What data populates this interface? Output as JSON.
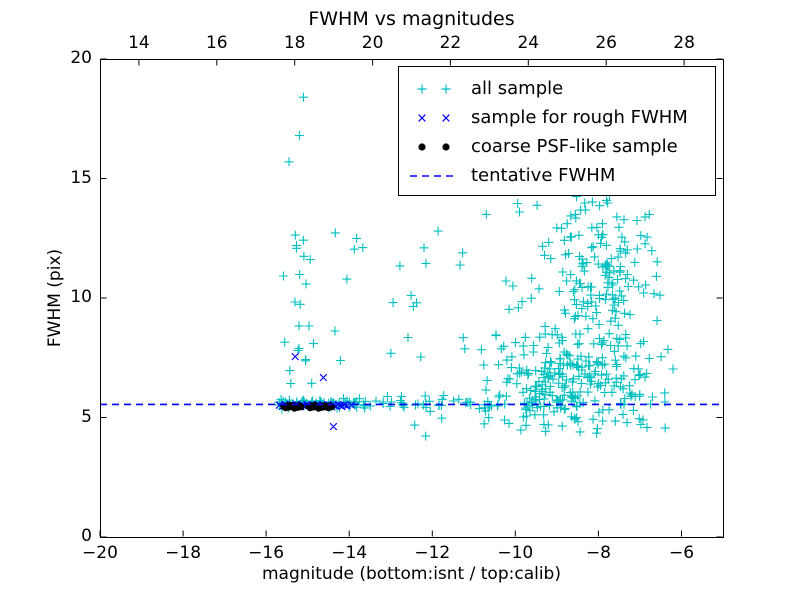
{
  "chart_data": {
    "type": "scatter",
    "title": "FWHM vs magnitudes",
    "xlabel": "magnitude (bottom:isnt / top:calib)",
    "ylabel": "FWHM (pix)",
    "x_bottom": {
      "range": [
        -20,
        -5
      ],
      "ticks": [
        -20,
        -18,
        -16,
        -14,
        -12,
        -10,
        -8,
        -6
      ]
    },
    "x_top": {
      "range": [
        13,
        29
      ],
      "ticks": [
        14,
        16,
        18,
        20,
        22,
        24,
        26,
        28
      ]
    },
    "y": {
      "range": [
        0,
        20
      ],
      "ticks": [
        0,
        5,
        10,
        15,
        20
      ]
    },
    "grid": false,
    "legend_position": "upper right",
    "tentative_fwhm": 5.55,
    "seed": 42,
    "colors": {
      "all_sample": "#00bfbf",
      "rough_fwhm": "#0000ff",
      "coarse_psf": "#000000",
      "tentative_line": "#0000ff"
    },
    "legend": [
      {
        "label": "all sample",
        "marker": "plus",
        "color": "#00bfbf"
      },
      {
        "label": "sample for rough FWHM",
        "marker": "x",
        "color": "#0000ff"
      },
      {
        "label": "coarse PSF-like sample",
        "marker": "dot",
        "color": "#000000"
      },
      {
        "label": "tentative FWHM",
        "marker": "dashed-line",
        "color": "#0000ff"
      }
    ],
    "series": [
      {
        "name": "all sample",
        "marker": "plus",
        "color": "#00bfbf",
        "points": [
          [
            -15.1,
            18.4
          ],
          [
            -15.45,
            15.7
          ],
          [
            -15.2,
            16.8
          ],
          [
            -10.7,
            13.5
          ],
          [
            -9.9,
            13.6
          ],
          [
            -12.2,
            12.1
          ],
          [
            -11.86,
            12.8
          ]
        ],
        "clusters": [
          {
            "count": 70,
            "x": {
              "dist": "uniform",
              "min": -15.7,
              "max": -13.6
            },
            "y": {
              "dist": "gauss",
              "mean": 5.58,
              "sd": 0.1
            }
          },
          {
            "count": 45,
            "x": {
              "dist": "uniform",
              "min": -13.7,
              "max": -10.2
            },
            "y": {
              "dist": "gauss",
              "mean": 5.6,
              "sd": 0.15
            }
          },
          {
            "count": 22,
            "x": {
              "dist": "gauss",
              "mean": -15.25,
              "sd": 0.18
            },
            "y": {
              "dist": "uniform",
              "min": 6.2,
              "max": 13.2
            }
          },
          {
            "count": 18,
            "x": {
              "dist": "uniform",
              "min": -14.5,
              "max": -11.2
            },
            "y": {
              "dist": "uniform",
              "min": 6.5,
              "max": 13.0
            }
          },
          {
            "count": 260,
            "x": {
              "dist": "gauss",
              "mean": -8.6,
              "sd": 1.0,
              "min": -10.8,
              "max": -5.8
            },
            "y": {
              "dist": "gauss",
              "mean": 6.3,
              "sd": 1.1,
              "min": 4.3,
              "max": 9.5
            }
          },
          {
            "count": 170,
            "x": {
              "dist": "gauss",
              "mean": -8.1,
              "sd": 0.8,
              "min": -10.5,
              "max": -6.0
            },
            "y": {
              "dist": "gauss",
              "mean": 11.0,
              "sd": 1.8,
              "min": 8.0,
              "max": 15.2
            }
          },
          {
            "count": 10,
            "x": {
              "dist": "uniform",
              "min": -12.8,
              "max": -5.9
            },
            "y": {
              "dist": "uniform",
              "min": 4.2,
              "max": 5.0
            }
          },
          {
            "count": 12,
            "x": {
              "dist": "uniform",
              "min": -11.5,
              "max": -9.8
            },
            "y": {
              "dist": "uniform",
              "min": 6.0,
              "max": 13.0
            }
          }
        ]
      },
      {
        "name": "sample for rough FWHM",
        "marker": "x",
        "color": "#0000ff",
        "points": [
          [
            -15.68,
            5.52
          ],
          [
            -15.6,
            5.47
          ],
          [
            -15.55,
            5.55
          ],
          [
            -15.5,
            5.5
          ],
          [
            -15.44,
            5.44
          ],
          [
            -15.38,
            5.53
          ],
          [
            -15.33,
            5.48
          ],
          [
            -15.28,
            5.55
          ],
          [
            -15.22,
            5.5
          ],
          [
            -15.17,
            5.45
          ],
          [
            -15.12,
            5.52
          ],
          [
            -15.07,
            5.48
          ],
          [
            -15.02,
            5.55
          ],
          [
            -14.97,
            5.5
          ],
          [
            -14.92,
            5.44
          ],
          [
            -14.87,
            5.53
          ],
          [
            -14.82,
            5.47
          ],
          [
            -14.77,
            5.55
          ],
          [
            -14.72,
            5.5
          ],
          [
            -14.67,
            5.45
          ],
          [
            -14.62,
            5.52
          ],
          [
            -14.57,
            5.48
          ],
          [
            -14.52,
            5.55
          ],
          [
            -14.47,
            5.5
          ],
          [
            -14.42,
            5.44
          ],
          [
            -14.37,
            5.52
          ],
          [
            -14.32,
            5.48
          ],
          [
            -14.27,
            5.55
          ],
          [
            -14.22,
            5.5
          ],
          [
            -14.17,
            5.46
          ],
          [
            -14.12,
            5.53
          ],
          [
            -14.05,
            5.49
          ],
          [
            -13.95,
            5.52
          ],
          [
            -15.3,
            7.55
          ],
          [
            -14.62,
            6.67
          ],
          [
            -14.38,
            4.62
          ]
        ],
        "clusters": []
      },
      {
        "name": "coarse PSF-like sample",
        "marker": "dot",
        "color": "#000000",
        "points": [
          [
            -15.58,
            5.46
          ],
          [
            -15.53,
            5.4
          ],
          [
            -15.49,
            5.5
          ],
          [
            -15.45,
            5.43
          ],
          [
            -15.4,
            5.52
          ],
          [
            -15.36,
            5.45
          ],
          [
            -15.32,
            5.38
          ],
          [
            -15.28,
            5.48
          ],
          [
            -15.24,
            5.42
          ],
          [
            -15.2,
            5.5
          ],
          [
            -15.16,
            5.44
          ],
          [
            -14.98,
            5.47
          ],
          [
            -14.94,
            5.4
          ],
          [
            -14.9,
            5.5
          ],
          [
            -14.86,
            5.44
          ],
          [
            -14.82,
            5.52
          ],
          [
            -14.78,
            5.45
          ],
          [
            -14.74,
            5.38
          ],
          [
            -14.7,
            5.48
          ],
          [
            -14.66,
            5.42
          ],
          [
            -14.62,
            5.5
          ],
          [
            -14.58,
            5.44
          ],
          [
            -14.54,
            5.47
          ],
          [
            -14.5,
            5.4
          ],
          [
            -14.46,
            5.5
          ],
          [
            -14.42,
            5.45
          ]
        ],
        "clusters": []
      }
    ]
  }
}
